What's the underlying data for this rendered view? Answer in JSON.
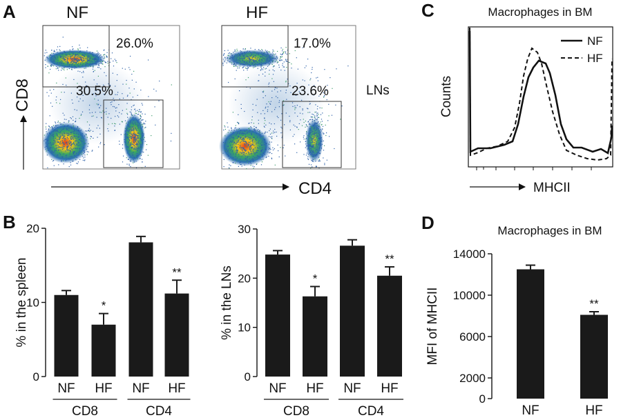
{
  "panels": {
    "A": {
      "label": "A",
      "plots": [
        {
          "title": "NF",
          "gate_upper": "26.0%",
          "gate_lower": "30.5%"
        },
        {
          "title": "HF",
          "gate_upper": "17.0%",
          "gate_lower": "23.6%"
        }
      ],
      "yaxis_label": "CD8",
      "xaxis_label": "CD4",
      "side_label": "LNs"
    },
    "B": {
      "label": "B"
    },
    "C": {
      "label": "C",
      "title": "Macrophages in BM",
      "ylabel": "Counts",
      "xlabel": "MHCII",
      "legend": [
        "NF",
        "HF"
      ]
    },
    "D": {
      "label": "D"
    }
  },
  "chart_data": [
    {
      "id": "B-spleen",
      "type": "bar",
      "title": "",
      "ylabel": "% in the spleen",
      "ylim": [
        0,
        20
      ],
      "yticks": [
        0,
        10,
        20
      ],
      "categories": [
        "NF",
        "HF",
        "NF",
        "HF"
      ],
      "groups": [
        {
          "label": "CD8",
          "categories": [
            "NF",
            "HF"
          ]
        },
        {
          "label": "CD4",
          "categories": [
            "NF",
            "HF"
          ]
        }
      ],
      "values": [
        11.0,
        7.0,
        18.1,
        11.2
      ],
      "errors": [
        0.6,
        1.5,
        0.8,
        1.8
      ],
      "significance": [
        "",
        "*",
        "",
        "**"
      ],
      "bar_color": "#1a1a1a"
    },
    {
      "id": "B-LNs",
      "type": "bar",
      "title": "",
      "ylabel": "% in the LNs",
      "ylim": [
        0,
        30
      ],
      "yticks": [
        0,
        10,
        20,
        30
      ],
      "categories": [
        "NF",
        "HF",
        "NF",
        "HF"
      ],
      "groups": [
        {
          "label": "CD8",
          "categories": [
            "NF",
            "HF"
          ]
        },
        {
          "label": "CD4",
          "categories": [
            "NF",
            "HF"
          ]
        }
      ],
      "values": [
        24.8,
        16.3,
        26.6,
        20.5
      ],
      "errors": [
        0.8,
        2.0,
        1.2,
        1.8
      ],
      "significance": [
        "",
        "*",
        "",
        "**"
      ],
      "bar_color": "#1a1a1a"
    },
    {
      "id": "D-MFI",
      "type": "bar",
      "title": "Macrophages in BM",
      "ylabel": "MFI of MHCII",
      "ylim": [
        0,
        14000
      ],
      "yticks": [
        0,
        2000,
        6000,
        10000,
        14000
      ],
      "categories": [
        "NF",
        "HF"
      ],
      "values": [
        12500,
        8100
      ],
      "errors": [
        400,
        300
      ],
      "significance": [
        "",
        "**"
      ],
      "bar_color": "#1a1a1a"
    }
  ]
}
